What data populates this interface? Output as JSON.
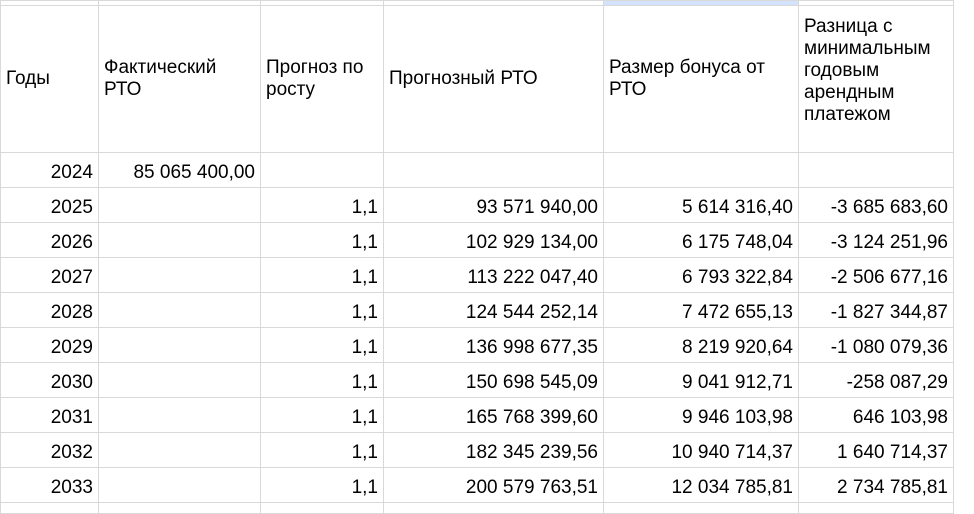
{
  "headers": {
    "year": "Годы",
    "actual_rto": "Фактический РТО",
    "growth_forecast": "Прогноз по росту",
    "forecast_rto": "Прогнозный РТО",
    "bonus": "Размер бонуса от РТО",
    "difference": "Разница с минимальным годовым арендным платежом"
  },
  "rows": [
    {
      "year": "2024",
      "actual_rto": "85 065 400,00",
      "growth": "",
      "forecast_rto": "",
      "bonus": "",
      "difference": ""
    },
    {
      "year": "2025",
      "actual_rto": "",
      "growth": "1,1",
      "forecast_rto": "93 571 940,00",
      "bonus": "5 614 316,40",
      "difference": "-3 685 683,60"
    },
    {
      "year": "2026",
      "actual_rto": "",
      "growth": "1,1",
      "forecast_rto": "102 929 134,00",
      "bonus": "6 175 748,04",
      "difference": "-3 124 251,96"
    },
    {
      "year": "2027",
      "actual_rto": "",
      "growth": "1,1",
      "forecast_rto": "113 222 047,40",
      "bonus": "6 793 322,84",
      "difference": "-2 506 677,16"
    },
    {
      "year": "2028",
      "actual_rto": "",
      "growth": "1,1",
      "forecast_rto": "124 544 252,14",
      "bonus": "7 472 655,13",
      "difference": "-1 827 344,87"
    },
    {
      "year": "2029",
      "actual_rto": "",
      "growth": "1,1",
      "forecast_rto": "136 998 677,35",
      "bonus": "8 219 920,64",
      "difference": "-1 080 079,36"
    },
    {
      "year": "2030",
      "actual_rto": "",
      "growth": "1,1",
      "forecast_rto": "150 698 545,09",
      "bonus": "9 041 912,71",
      "difference": "-258 087,29"
    },
    {
      "year": "2031",
      "actual_rto": "",
      "growth": "1,1",
      "forecast_rto": "165 768 399,60",
      "bonus": "9 946 103,98",
      "difference": "646 103,98"
    },
    {
      "year": "2032",
      "actual_rto": "",
      "growth": "1,1",
      "forecast_rto": "182 345 239,56",
      "bonus": "10 940 714,37",
      "difference": "1 640 714,37"
    },
    {
      "year": "2033",
      "actual_rto": "",
      "growth": "1,1",
      "forecast_rto": "200 579 763,51",
      "bonus": "12 034 785,81",
      "difference": "2 734 785,81"
    }
  ]
}
